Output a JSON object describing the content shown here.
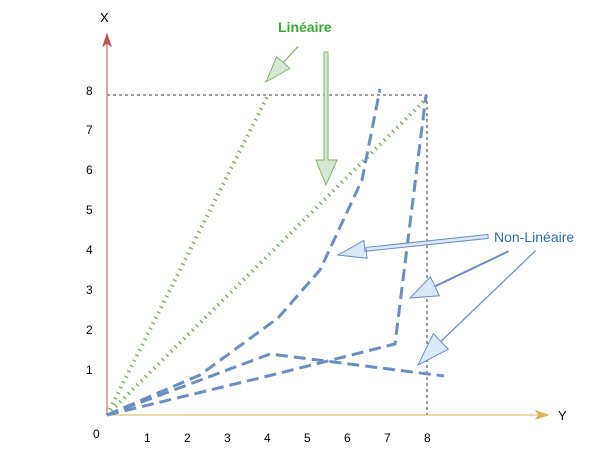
{
  "axes": {
    "vertical_title": "X",
    "horizontal_title": "Y",
    "origin_label": "0",
    "x_ticks": [
      "1",
      "2",
      "3",
      "4",
      "5",
      "6",
      "7",
      "8"
    ],
    "y_ticks": [
      "1",
      "2",
      "3",
      "4",
      "5",
      "6",
      "7",
      "8"
    ],
    "vertical_color": "#b85450",
    "horizontal_color": "#d6b656"
  },
  "labels": {
    "lineaire": "Linéaire",
    "non_lineaire": "Non-Linéaire"
  },
  "colors": {
    "lineaire": "#82b366",
    "lineaire_text": "#39a839",
    "lineaire_arrow_fill": "#d5e8d4",
    "non_lineaire": "#6c8ebf",
    "non_lineaire_text": "#2b6cb0",
    "non_lineaire_arrow_fill": "#dae8fc"
  }
}
